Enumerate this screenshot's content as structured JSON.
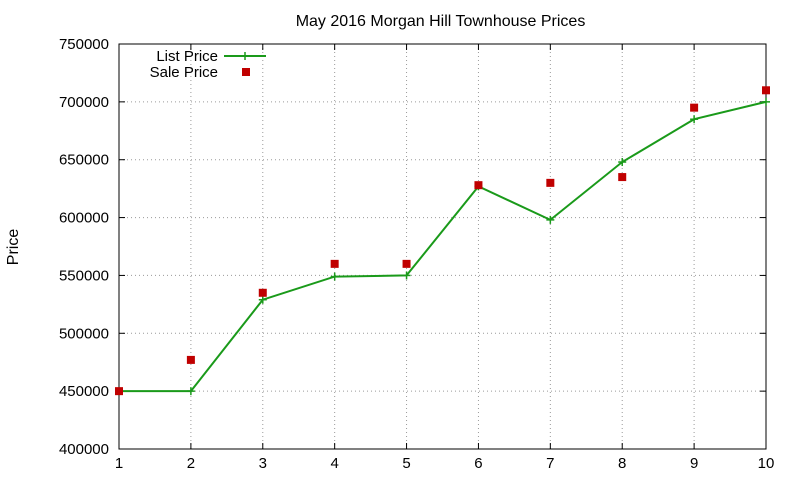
{
  "chart_data": {
    "type": "line",
    "title": "May 2016 Morgan Hill Townhouse Prices",
    "xlabel": "",
    "ylabel": "Price",
    "x": [
      1,
      2,
      3,
      4,
      5,
      6,
      7,
      8,
      9,
      10
    ],
    "xlim": [
      1,
      10
    ],
    "ylim": [
      400000,
      750000
    ],
    "x_ticks": [
      "1",
      "2",
      "3",
      "4",
      "5",
      "6",
      "7",
      "8",
      "9",
      "10"
    ],
    "y_ticks": [
      "400000",
      "450000",
      "500000",
      "550000",
      "600000",
      "650000",
      "700000",
      "750000"
    ],
    "grid": true,
    "legend_position": "top-left",
    "series": [
      {
        "name": "List Price",
        "style": "line-with-plus-markers",
        "color": "#1a9a1a",
        "values": [
          450000,
          450000,
          529000,
          549000,
          550000,
          627000,
          598000,
          648000,
          685000,
          700000
        ]
      },
      {
        "name": "Sale Price",
        "style": "square-markers",
        "color": "#c00000",
        "values": [
          450000,
          477000,
          535000,
          560000,
          560000,
          628000,
          630000,
          635000,
          695000,
          710000
        ]
      }
    ]
  }
}
